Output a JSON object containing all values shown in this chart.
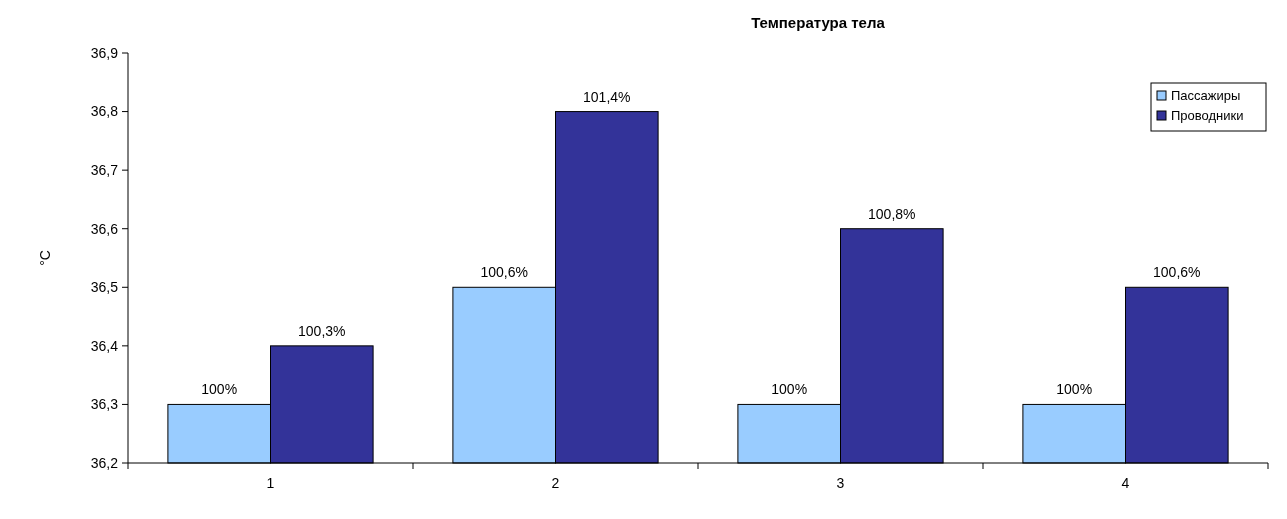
{
  "chart_data": {
    "type": "bar",
    "title": "Температура тела",
    "ylabel": "°C",
    "categories": [
      "1",
      "2",
      "3",
      "4"
    ],
    "series": [
      {
        "name": "Пассажиры",
        "color": "#99ccff",
        "values": [
          36.3,
          36.5,
          36.3,
          36.3
        ]
      },
      {
        "name": "Проводники",
        "color": "#333399",
        "values": [
          36.4,
          36.8,
          36.6,
          36.5
        ]
      }
    ],
    "annotations": [
      {
        "text": "100%",
        "x": "1",
        "y": 36.3
      },
      {
        "text": "100,3%",
        "x": "1",
        "y": 36.4
      },
      {
        "text": "100,6%",
        "x": "2",
        "y": 36.5
      },
      {
        "text": "101,4%",
        "x": "2",
        "y": 36.8
      },
      {
        "text": "100%",
        "x": "3",
        "y": 36.3
      },
      {
        "text": "100,8%",
        "x": "3",
        "y": 36.6
      },
      {
        "text": "100%",
        "x": "4",
        "y": 36.3
      },
      {
        "text": "100,6%",
        "x": "4",
        "y": 36.5
      }
    ],
    "ylim": [
      36.2,
      36.9
    ],
    "yticks": [
      {
        "value": 36.2,
        "label": "36,2"
      },
      {
        "value": 36.3,
        "label": "36,3"
      },
      {
        "value": 36.4,
        "label": "36,4"
      },
      {
        "value": 36.5,
        "label": "36,5"
      },
      {
        "value": 36.6,
        "label": "36,6"
      },
      {
        "value": 36.7,
        "label": "36,7"
      },
      {
        "value": 36.8,
        "label": "36,8"
      },
      {
        "value": 36.9,
        "label": "36,9"
      }
    ],
    "grid": false,
    "legend": "top right"
  }
}
